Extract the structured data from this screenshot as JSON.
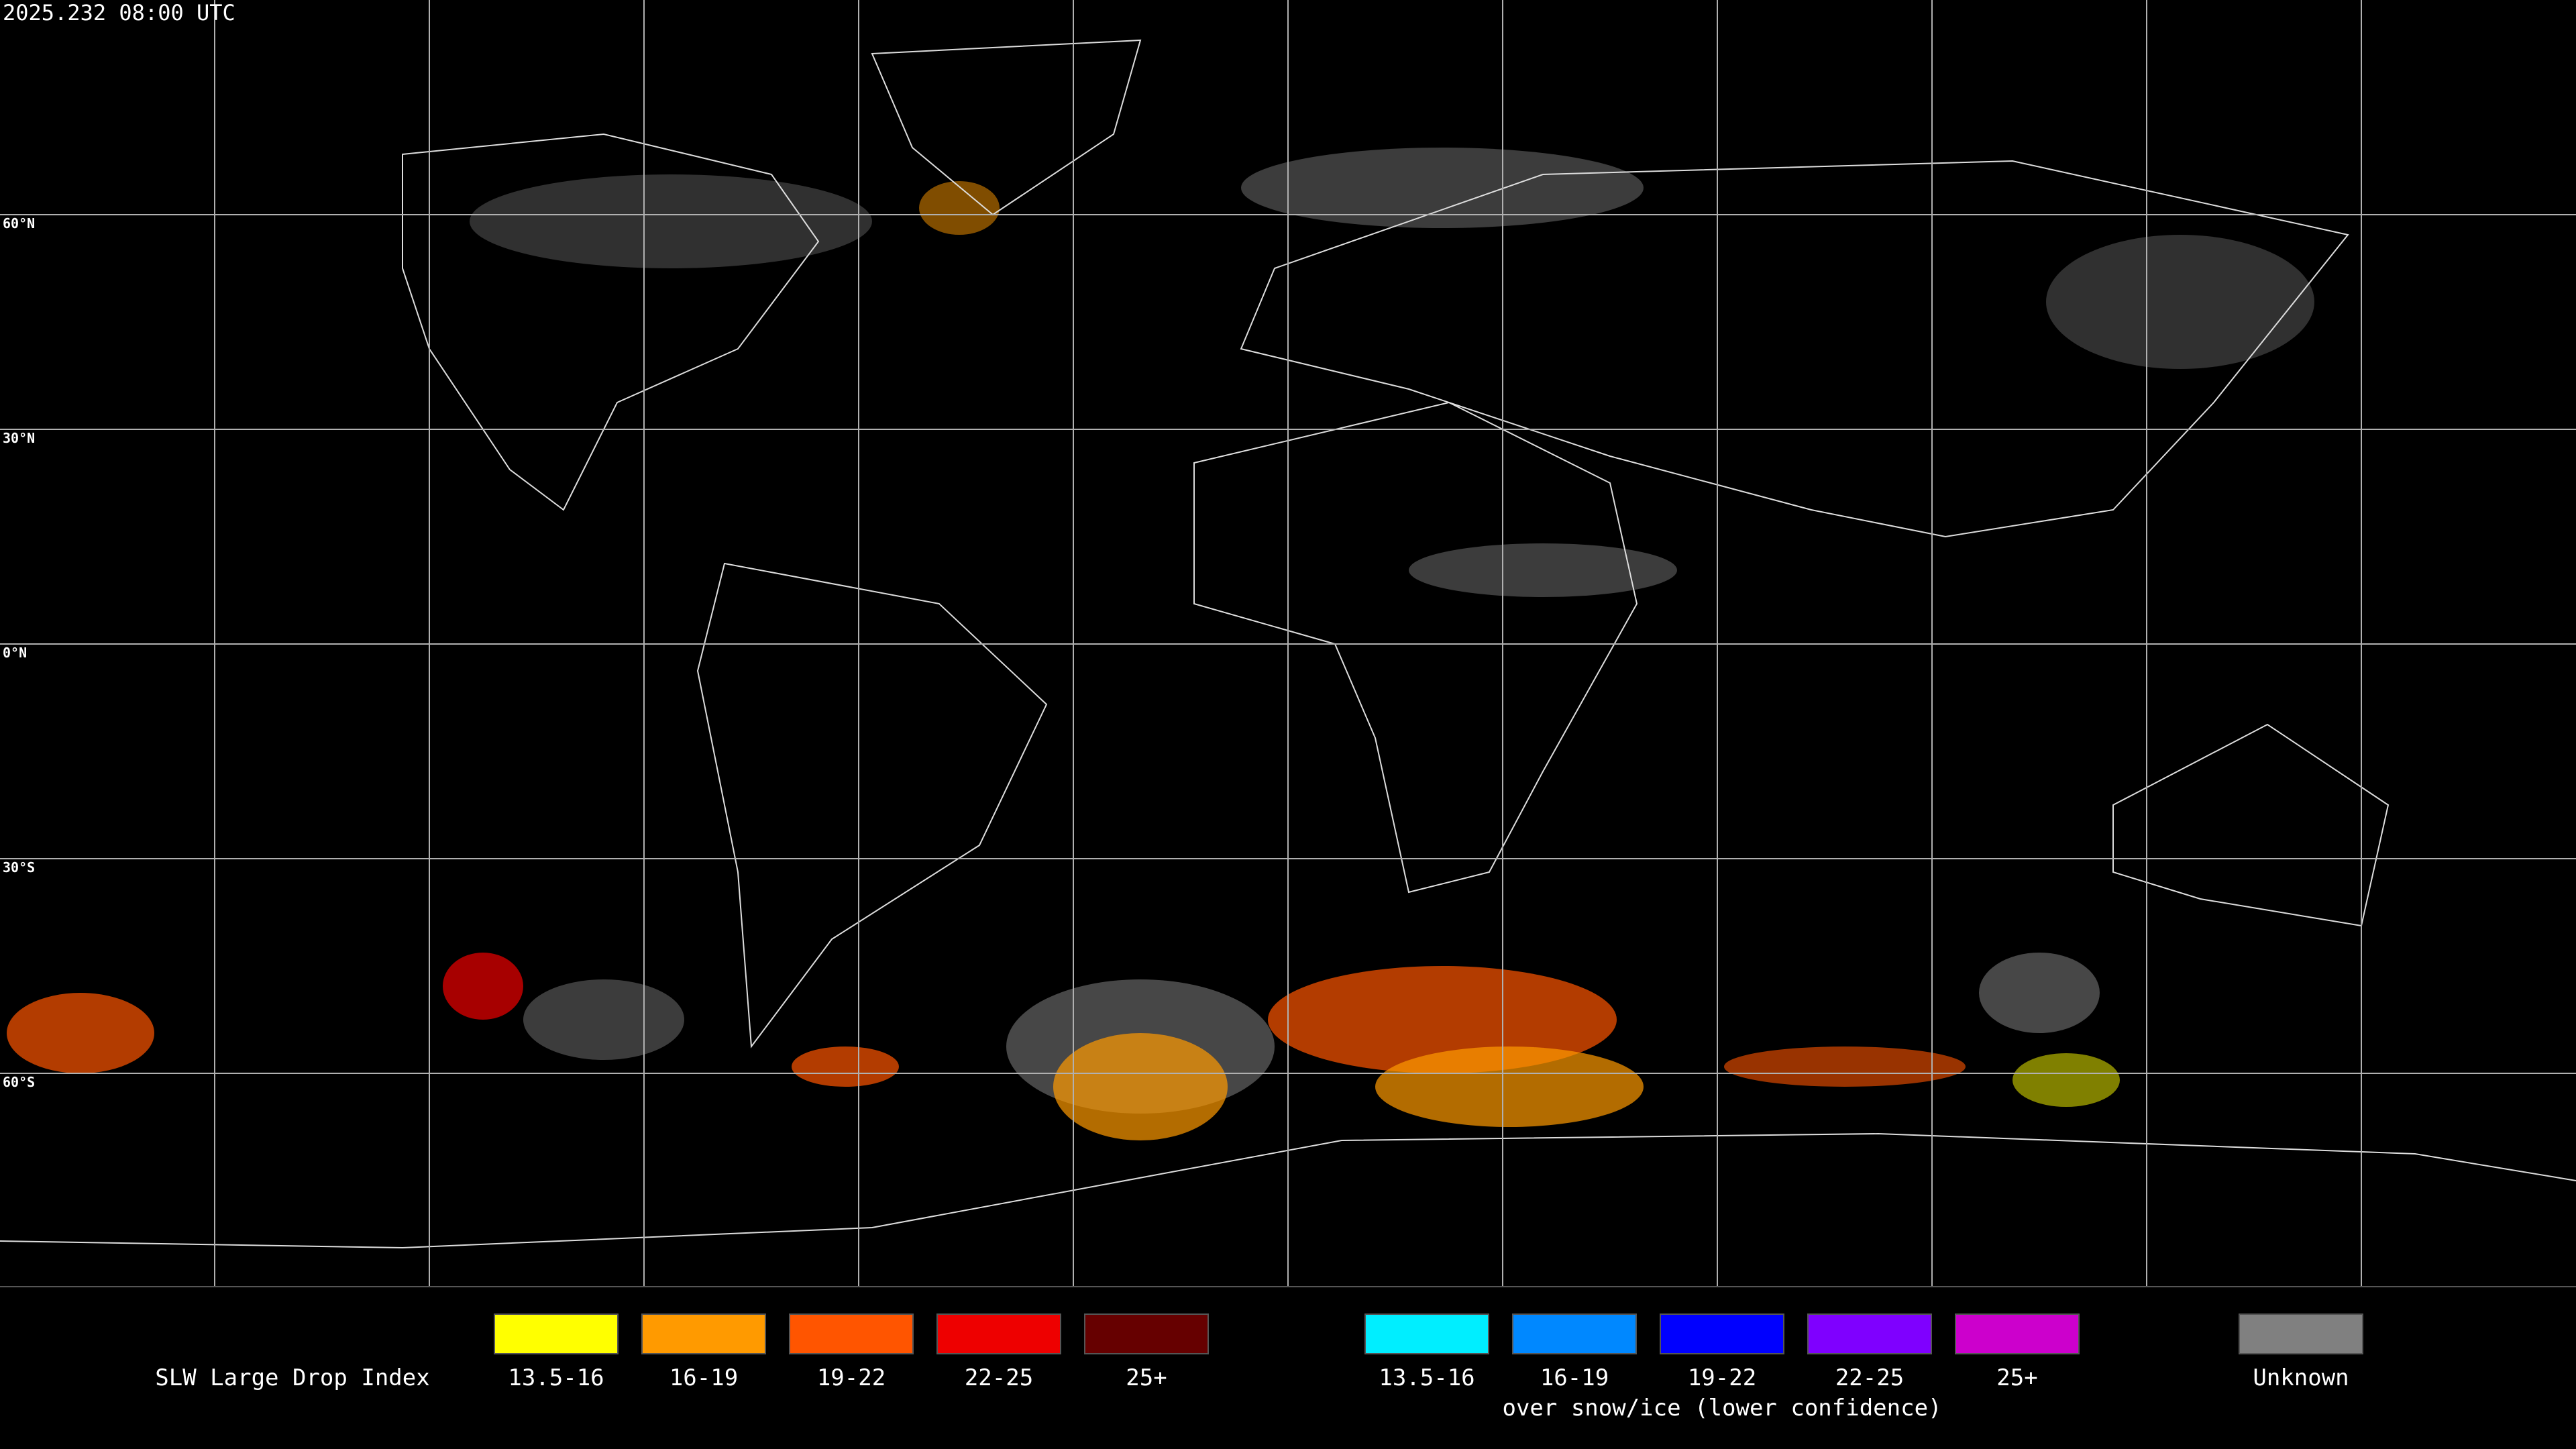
{
  "header": {
    "timestamp": "2025.232 08:00 UTC"
  },
  "map": {
    "latitude_labels": [
      "60°N",
      "30°N",
      "0°N",
      "30°S",
      "60°S"
    ]
  },
  "legend": {
    "title": "SLW Large Drop Index",
    "groups": [
      {
        "items": [
          {
            "label": "13.5-16",
            "color": "#ffff00"
          },
          {
            "label": "16-19",
            "color": "#ff9a00"
          },
          {
            "label": "19-22",
            "color": "#ff5500"
          },
          {
            "label": "22-25",
            "color": "#ee0000"
          },
          {
            "label": "25+",
            "color": "#660000"
          }
        ]
      },
      {
        "items": [
          {
            "label": "13.5-16",
            "color": "#00eeff"
          },
          {
            "label": "16-19",
            "color": "#0088ff"
          },
          {
            "label": "19-22",
            "color": "#0000ff"
          },
          {
            "label": "22-25",
            "color": "#7f00ff"
          },
          {
            "label": "25+",
            "color": "#cc00cc"
          }
        ],
        "caption": "over snow/ice (lower confidence)"
      },
      {
        "items": [
          {
            "label": "Unknown",
            "color": "#808080"
          }
        ]
      }
    ]
  }
}
